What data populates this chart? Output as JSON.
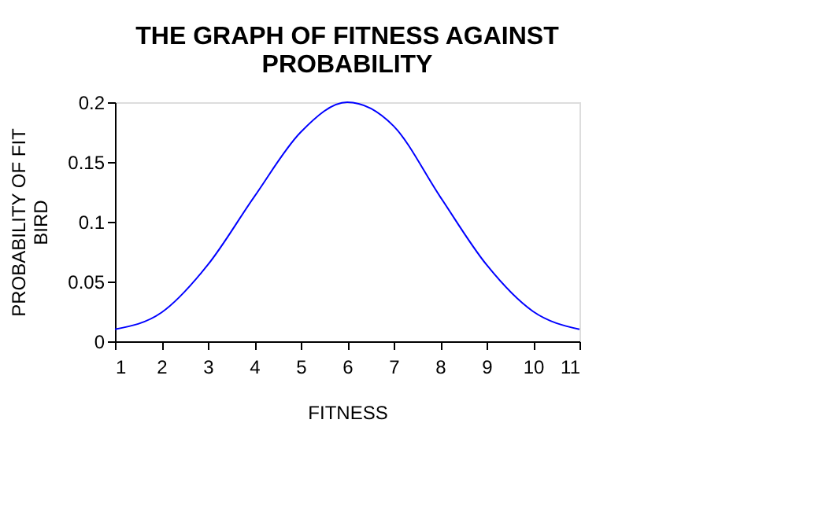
{
  "chart_data": {
    "type": "line",
    "title": [
      "THE GRAPH OF FITNESS AGAINST",
      "PROBABILITY"
    ],
    "xlabel": "FITNESS",
    "ylabel": [
      "PROBABILITY OF FIT",
      "BIRD"
    ],
    "x": [
      1,
      2,
      3,
      4,
      5,
      6,
      7,
      8,
      9,
      10,
      11
    ],
    "series": [
      {
        "color": "#0000ff",
        "values": [
          0.01,
          0.024,
          0.064,
          0.121,
          0.175,
          0.2,
          0.18,
          0.121,
          0.064,
          0.025,
          0.01
        ]
      }
    ],
    "xlim": [
      1,
      11
    ],
    "xticks": [
      1,
      2,
      3,
      4,
      5,
      6,
      7,
      8,
      9,
      10,
      11
    ],
    "ylim": [
      0,
      0.2
    ],
    "yticks": [
      0,
      0.05,
      0.1,
      0.15,
      0.2
    ],
    "grid": false,
    "legend": false,
    "marker": "none",
    "line_style": "solid"
  }
}
